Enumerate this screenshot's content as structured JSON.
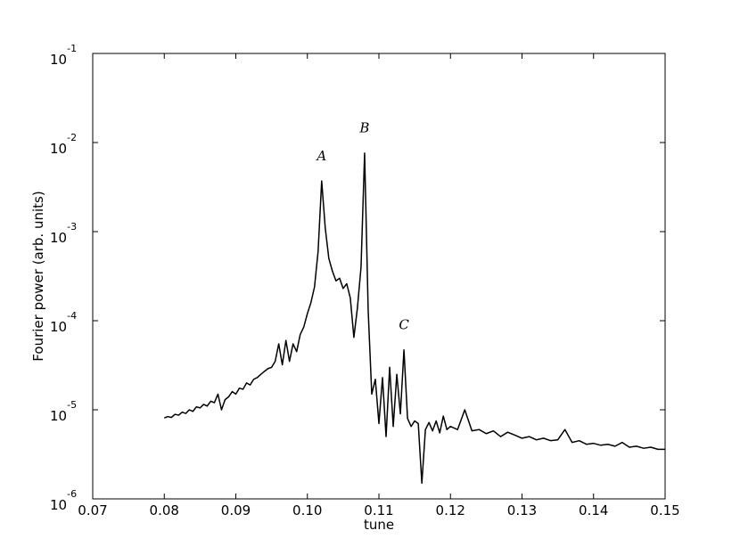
{
  "chart_data": {
    "type": "line",
    "xlabel": "tune",
    "ylabel": "Fourier power (arb. units)",
    "yscale": "log",
    "grid": false,
    "xlim": [
      0.07,
      0.15
    ],
    "ylim": [
      1e-06,
      0.1
    ],
    "xticks": [
      0.07,
      0.08,
      0.09,
      {
        "value": 0.1,
        "label": "0.10"
      },
      0.11,
      0.12,
      0.13,
      0.14,
      0.15
    ],
    "yticks": [
      {
        "value": 1e-06,
        "label": "10",
        "sup": "-6"
      },
      {
        "value": 1e-05,
        "label": "10",
        "sup": "-5"
      },
      {
        "value": 0.0001,
        "label": "10",
        "sup": "-4"
      },
      {
        "value": 0.001,
        "label": "10",
        "sup": "-3"
      },
      {
        "value": 0.01,
        "label": "10",
        "sup": "-2"
      },
      {
        "value": 0.1,
        "label": "10",
        "sup": "-1"
      }
    ],
    "annotations": [
      {
        "text": "A",
        "x": 0.102,
        "y": 0.0063
      },
      {
        "text": "B",
        "x": 0.108,
        "y": 0.013
      },
      {
        "text": "C",
        "x": 0.1135,
        "y": 8e-05
      }
    ],
    "series": [
      {
        "color": "#000000",
        "x": [
          0.08,
          0.0805,
          0.081,
          0.0815,
          0.082,
          0.0825,
          0.083,
          0.0835,
          0.084,
          0.0845,
          0.085,
          0.0855,
          0.086,
          0.0865,
          0.087,
          0.0875,
          0.088,
          0.0885,
          0.089,
          0.0895,
          0.09,
          0.0905,
          0.091,
          0.0915,
          0.092,
          0.0925,
          0.093,
          0.0935,
          0.094,
          0.0945,
          0.095,
          0.0955,
          0.096,
          0.0965,
          0.097,
          0.0975,
          0.098,
          0.0985,
          0.099,
          0.0995,
          0.1,
          0.1005,
          0.101,
          0.1015,
          0.102,
          0.1025,
          0.103,
          0.1035,
          0.104,
          0.1045,
          0.105,
          0.1055,
          0.106,
          0.1065,
          0.107,
          0.1075,
          0.108,
          0.1085,
          0.109,
          0.1095,
          0.11,
          0.1105,
          0.111,
          0.1115,
          0.112,
          0.1125,
          0.113,
          0.1135,
          0.114,
          0.1145,
          0.115,
          0.1155,
          0.116,
          0.1165,
          0.117,
          0.1175,
          0.118,
          0.1185,
          0.119,
          0.1195,
          0.12,
          0.121,
          0.122,
          0.123,
          0.124,
          0.125,
          0.126,
          0.127,
          0.128,
          0.129,
          0.13,
          0.131,
          0.132,
          0.133,
          0.134,
          0.135,
          0.136,
          0.137,
          0.138,
          0.139,
          0.14,
          0.141,
          0.142,
          0.143,
          0.144,
          0.145,
          0.146,
          0.147,
          0.148,
          0.149,
          0.15
        ],
        "values": [
          8.1e-06,
          8.4e-06,
          8.2e-06,
          8.9e-06,
          8.7e-06,
          9.4e-06,
          9.1e-06,
          1e-05,
          9.6e-06,
          1.08e-05,
          1.05e-05,
          1.15e-05,
          1.1e-05,
          1.25e-05,
          1.2e-05,
          1.5e-05,
          1e-05,
          1.3e-05,
          1.4e-05,
          1.6e-05,
          1.5e-05,
          1.75e-05,
          1.7e-05,
          2e-05,
          1.9e-05,
          2.2e-05,
          2.3e-05,
          2.5e-05,
          2.7e-05,
          2.9e-05,
          3e-05,
          3.5e-05,
          5.5e-05,
          3.2e-05,
          6e-05,
          3.5e-05,
          5.5e-05,
          4.5e-05,
          7e-05,
          8.5e-05,
          0.00012,
          0.00016,
          0.00024,
          0.0006,
          0.0037,
          0.0011,
          0.0005,
          0.00036,
          0.00028,
          0.0003,
          0.00023,
          0.00026,
          0.00018,
          6.5e-05,
          0.00014,
          0.0004,
          0.0076,
          0.00013,
          1.5e-05,
          2.2e-05,
          7e-06,
          2.3e-05,
          5e-06,
          3e-05,
          6.5e-06,
          2.5e-05,
          9e-06,
          4.7e-05,
          8e-06,
          6.5e-06,
          7.5e-06,
          7e-06,
          1.5e-06,
          6e-06,
          7.2e-06,
          5.8e-06,
          7.5e-06,
          5.5e-06,
          8.5e-06,
          6e-06,
          6.5e-06,
          6e-06,
          1e-05,
          5.8e-06,
          6e-06,
          5.4e-06,
          5.8e-06,
          5e-06,
          5.6e-06,
          5.2e-06,
          4.8e-06,
          5e-06,
          4.6e-06,
          4.8e-06,
          4.5e-06,
          4.6e-06,
          6e-06,
          4.3e-06,
          4.5e-06,
          4.1e-06,
          4.2e-06,
          4e-06,
          4.1e-06,
          3.9e-06,
          4.3e-06,
          3.8e-06,
          3.9e-06,
          3.7e-06,
          3.8e-06,
          3.6e-06,
          3.6e-06
        ]
      }
    ]
  }
}
